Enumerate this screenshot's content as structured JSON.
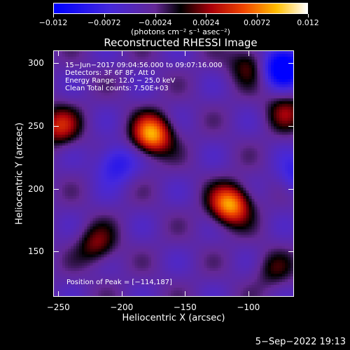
{
  "colorbar": {
    "tick_labels": [
      "−0.012",
      "−0.0072",
      "−0.0024",
      "0.0024",
      "0.0072",
      "0.012"
    ],
    "units": "(photons cm⁻² s⁻¹ asec⁻²)",
    "range": [
      -0.012,
      0.012
    ]
  },
  "plot": {
    "title": "Reconstructed RHESSI Image",
    "info_lines": [
      "15−Jun−2017 09:04:56.000 to 09:07:16.000",
      "Detectors: 3F 6F 8F, Att 0",
      "Energy Range: 12.0 − 25.0 keV",
      "Clean     Total counts: 7.50E+03"
    ],
    "peak_label": "Position of Peak = [−114,187]",
    "xlabel": "Heliocentric X (arcsec)",
    "ylabel": "Heliocentric Y (arcsec)",
    "x_ticks": [
      "−250",
      "−200",
      "−150",
      "−100"
    ],
    "y_ticks": [
      "300",
      "250",
      "200",
      "150"
    ]
  },
  "footer": {
    "timestamp": "5−Sep−2022 19:13"
  },
  "chart_data": {
    "type": "heatmap",
    "title": "Reconstructed RHESSI Image",
    "xlabel": "Heliocentric X (arcsec)",
    "ylabel": "Heliocentric Y (arcsec)",
    "xlim": [
      -254,
      -64
    ],
    "ylim": [
      114,
      310
    ],
    "x_tick_values": [
      -250,
      -200,
      -150,
      -100
    ],
    "y_tick_values": [
      300,
      250,
      200,
      150
    ],
    "colorbar_range": [
      -0.012,
      0.012
    ],
    "colorbar_units": "(photons cm⁻² s⁻¹ asec⁻²)",
    "peak_position": [
      -114,
      187
    ],
    "sources": [
      {
        "x": -176,
        "y": 243,
        "amp": 0.012
      },
      {
        "x": -114,
        "y": 187,
        "amp": 0.012
      },
      {
        "x": -250,
        "y": 250,
        "amp": 0.0072
      },
      {
        "x": -100,
        "y": 300,
        "amp": 0.005
      },
      {
        "x": -70,
        "y": 262,
        "amp": 0.005
      },
      {
        "x": -220,
        "y": 155,
        "amp": 0.0055
      },
      {
        "x": -80,
        "y": 135,
        "amp": 0.0035
      }
    ],
    "negative_regions": [
      {
        "x": -72,
        "y": 298,
        "amp": -0.012
      },
      {
        "x": -205,
        "y": 220,
        "amp": -0.006
      },
      {
        "x": -60,
        "y": 210,
        "amp": -0.005
      }
    ]
  }
}
